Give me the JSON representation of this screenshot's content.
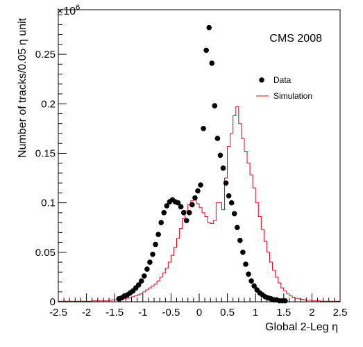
{
  "chart_data": {
    "type": "scatter",
    "xlabel": "Global 2-Leg η",
    "ylabel": "Number of tracks/0.05 η unit",
    "y_multiplier_label": "×10",
    "y_multiplier_exponent": "6",
    "annotation": "CMS 2008",
    "xlim": [
      -2.5,
      2.5
    ],
    "ylim": [
      0,
      0.295
    ],
    "x_ticks": [
      -2.5,
      -2,
      -1.5,
      -1,
      -0.5,
      0,
      0.5,
      1,
      1.5,
      2,
      2.5
    ],
    "x_tick_labels": [
      "-2.5",
      "-2",
      "-1.5",
      "-1",
      "-0.5",
      "0",
      "0.5",
      "1",
      "1.5",
      "2",
      "2.5"
    ],
    "y_ticks": [
      0,
      0.05,
      0.1,
      0.15,
      0.2,
      0.25
    ],
    "y_tick_labels": [
      "0",
      "0.05",
      "0.1",
      "0.15",
      "0.2",
      "0.25"
    ],
    "legend": {
      "position": "top-right",
      "entries": [
        {
          "label": "Data",
          "style": "marker",
          "color": "#000000"
        },
        {
          "label": "Simulation",
          "style": "line",
          "color": "#e0001a"
        }
      ]
    },
    "series": [
      {
        "name": "Data",
        "style": "markers",
        "color": "#000000",
        "x": [
          -1.425,
          -1.375,
          -1.325,
          -1.275,
          -1.225,
          -1.175,
          -1.125,
          -1.075,
          -1.025,
          -0.975,
          -0.925,
          -0.875,
          -0.825,
          -0.775,
          -0.725,
          -0.675,
          -0.625,
          -0.575,
          -0.525,
          -0.475,
          -0.425,
          -0.375,
          -0.325,
          -0.275,
          -0.225,
          -0.175,
          -0.125,
          -0.075,
          -0.025,
          0.025,
          0.075,
          0.125,
          0.175,
          0.225,
          0.275,
          0.325,
          0.375,
          0.425,
          0.475,
          0.525,
          0.575,
          0.625,
          0.675,
          0.725,
          0.775,
          0.825,
          0.875,
          0.925,
          0.975,
          1.025,
          1.075,
          1.125,
          1.175,
          1.225,
          1.275,
          1.325,
          1.375,
          1.425,
          1.475,
          1.525
        ],
        "y": [
          0.003,
          0.004,
          0.006,
          0.007,
          0.009,
          0.011,
          0.014,
          0.017,
          0.021,
          0.026,
          0.033,
          0.04,
          0.048,
          0.058,
          0.068,
          0.08,
          0.09,
          0.097,
          0.101,
          0.103,
          0.101,
          0.1,
          0.096,
          0.09,
          0.082,
          0.09,
          0.098,
          0.105,
          0.112,
          0.118,
          0.175,
          0.254,
          0.277,
          0.241,
          0.198,
          0.165,
          0.148,
          0.135,
          0.12,
          0.107,
          0.1,
          0.089,
          0.075,
          0.062,
          0.05,
          0.038,
          0.028,
          0.021,
          0.016,
          0.012,
          0.009,
          0.007,
          0.005,
          0.004,
          0.003,
          0.002,
          0.002,
          0.001,
          0.001,
          0.001
        ]
      },
      {
        "name": "Simulation",
        "style": "step",
        "color": "#e0001a",
        "bin_width": 0.05,
        "bin_start": -2.5,
        "values": [
          0.0005,
          0.0005,
          0.0005,
          0.0005,
          0.0005,
          0.0005,
          0.0005,
          0.0005,
          0.0005,
          0.0005,
          0.0005,
          0.0005,
          0.001,
          0.001,
          0.001,
          0.001,
          0.001,
          0.001,
          0.0015,
          0.002,
          0.002,
          0.002,
          0.0025,
          0.003,
          0.0035,
          0.004,
          0.005,
          0.006,
          0.007,
          0.008,
          0.01,
          0.012,
          0.014,
          0.016,
          0.018,
          0.021,
          0.025,
          0.029,
          0.034,
          0.04,
          0.047,
          0.055,
          0.064,
          0.074,
          0.084,
          0.092,
          0.098,
          0.102,
          0.104,
          0.099,
          0.095,
          0.09,
          0.086,
          0.08,
          0.079,
          0.082,
          0.1,
          0.1,
          0.093,
          0.125,
          0.157,
          0.17,
          0.188,
          0.197,
          0.18,
          0.165,
          0.152,
          0.14,
          0.128,
          0.115,
          0.1,
          0.086,
          0.073,
          0.061,
          0.05,
          0.04,
          0.032,
          0.025,
          0.019,
          0.014,
          0.011,
          0.008,
          0.006,
          0.0045,
          0.0035,
          0.003,
          0.0025,
          0.002,
          0.0015,
          0.0015,
          0.001,
          0.001,
          0.001,
          0.0005,
          0.0005,
          0.0005,
          0.0005,
          0.0005,
          0.0005,
          0.0005
        ]
      }
    ]
  }
}
